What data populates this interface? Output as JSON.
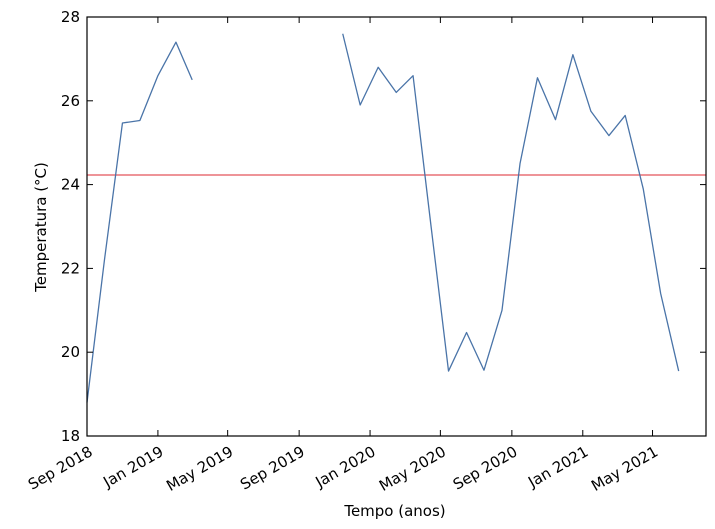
{
  "chart_data": {
    "type": "line",
    "title": "",
    "xlabel": "Tempo (anos)",
    "ylabel": "Temperatura (°C)",
    "xlim": [
      "2018-09-01",
      "2021-08-01"
    ],
    "ylim": [
      18,
      28
    ],
    "grid": false,
    "yticks": [
      18,
      20,
      22,
      24,
      26,
      28
    ],
    "xticks": [
      {
        "date": "2018-09-01",
        "label": "Sep 2018"
      },
      {
        "date": "2019-01-01",
        "label": "Jan 2019"
      },
      {
        "date": "2019-05-01",
        "label": "May 2019"
      },
      {
        "date": "2019-09-01",
        "label": "Sep 2019"
      },
      {
        "date": "2020-01-01",
        "label": "Jan 2020"
      },
      {
        "date": "2020-05-01",
        "label": "May 2020"
      },
      {
        "date": "2020-09-01",
        "label": "Sep 2020"
      },
      {
        "date": "2021-01-01",
        "label": "Jan 2021"
      },
      {
        "date": "2021-05-01",
        "label": "May 2021"
      }
    ],
    "series": [
      {
        "color": "#4a74a8",
        "segments": [
          [
            {
              "x": "2018-09-01",
              "y": 18.8
            },
            {
              "x": "2018-10-01",
              "y": 22.2
            },
            {
              "x": "2018-11-01",
              "y": 25.47
            },
            {
              "x": "2018-12-01",
              "y": 25.53
            },
            {
              "x": "2019-01-01",
              "y": 26.6
            },
            {
              "x": "2019-02-01",
              "y": 27.4
            },
            {
              "x": "2019-03-01",
              "y": 26.5
            }
          ],
          [
            {
              "x": "2019-11-15",
              "y": 27.6
            },
            {
              "x": "2019-12-15",
              "y": 25.9
            },
            {
              "x": "2020-01-15",
              "y": 26.8
            },
            {
              "x": "2020-02-15",
              "y": 26.2
            },
            {
              "x": "2020-03-15",
              "y": 26.6
            },
            {
              "x": "2020-04-15",
              "y": 23.0
            },
            {
              "x": "2020-05-15",
              "y": 19.55
            },
            {
              "x": "2020-06-15",
              "y": 20.47
            },
            {
              "x": "2020-07-15",
              "y": 19.57
            },
            {
              "x": "2020-08-15",
              "y": 21.0
            },
            {
              "x": "2020-09-15",
              "y": 24.5
            },
            {
              "x": "2020-10-15",
              "y": 26.55
            },
            {
              "x": "2020-11-15",
              "y": 25.55
            },
            {
              "x": "2020-12-15",
              "y": 27.1
            },
            {
              "x": "2021-01-15",
              "y": 25.75
            },
            {
              "x": "2021-02-15",
              "y": 25.17
            },
            {
              "x": "2021-03-15",
              "y": 25.65
            },
            {
              "x": "2021-04-15",
              "y": 23.9
            },
            {
              "x": "2021-05-15",
              "y": 21.4
            },
            {
              "x": "2021-06-15",
              "y": 19.55
            }
          ]
        ]
      }
    ],
    "reference_line": {
      "y": 24.23,
      "color": "#e3545b"
    },
    "line_color": "#4a74a8",
    "axis_color": "#000000"
  }
}
